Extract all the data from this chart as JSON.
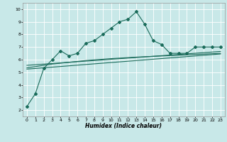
{
  "xlabel": "Humidex (Indice chaleur)",
  "bg_color": "#c8e8e8",
  "grid_color": "#ffffff",
  "line_color": "#1a6b5a",
  "xlim": [
    -0.5,
    23.5
  ],
  "ylim": [
    1.5,
    10.5
  ],
  "xticks": [
    0,
    1,
    2,
    3,
    4,
    5,
    6,
    7,
    8,
    9,
    10,
    11,
    12,
    13,
    14,
    15,
    16,
    17,
    18,
    19,
    20,
    21,
    22,
    23
  ],
  "yticks": [
    2,
    3,
    4,
    5,
    6,
    7,
    8,
    9,
    10
  ],
  "main_x": [
    0,
    1,
    2,
    3,
    4,
    5,
    6,
    7,
    8,
    9,
    10,
    11,
    12,
    13,
    14,
    15,
    16,
    17,
    18,
    19,
    20,
    21,
    22,
    23
  ],
  "main_y": [
    2.3,
    3.3,
    5.3,
    6.0,
    6.7,
    6.3,
    6.5,
    7.3,
    7.5,
    8.0,
    8.5,
    9.0,
    9.2,
    9.8,
    8.8,
    7.5,
    7.2,
    6.5,
    6.5,
    6.5,
    7.0,
    7.0,
    7.0,
    7.0
  ],
  "trend1_y": [
    5.55,
    6.65
  ],
  "trend2_y": [
    5.25,
    6.45
  ],
  "smooth_y": [
    5.35,
    5.45,
    5.55,
    5.65,
    5.72,
    5.79,
    5.86,
    5.93,
    5.98,
    6.03,
    6.08,
    6.12,
    6.16,
    6.2,
    6.23,
    6.26,
    6.29,
    6.32,
    6.35,
    6.38,
    6.41,
    6.44,
    6.47,
    6.5
  ]
}
